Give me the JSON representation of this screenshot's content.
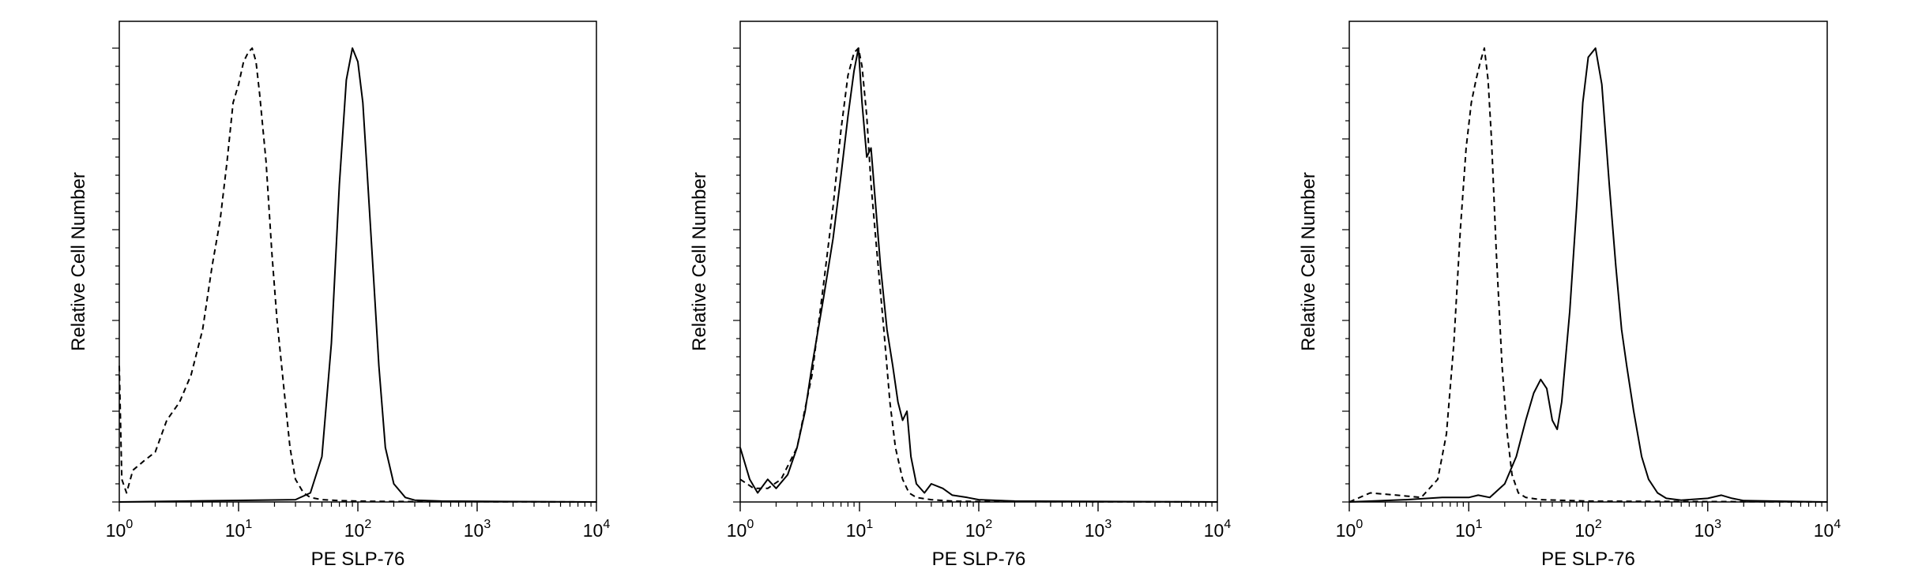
{
  "colors": {
    "background": "#ffffff",
    "ink": "#000000"
  },
  "chart_data": [
    {
      "type": "line",
      "xlabel": "PE SLP-76",
      "ylabel": "Relative Cell Number",
      "xscale": "log",
      "xlim": [
        1,
        10000
      ],
      "ylim": [
        0,
        1.0
      ],
      "grid": false,
      "x_ticks": [
        {
          "value": 1,
          "base": "10",
          "exp": "0"
        },
        {
          "value": 10,
          "base": "10",
          "exp": "1"
        },
        {
          "value": 100,
          "base": "10",
          "exp": "2"
        },
        {
          "value": 1000,
          "base": "10",
          "exp": "3"
        },
        {
          "value": 10000,
          "base": "10",
          "exp": "4"
        }
      ],
      "series": [
        {
          "style": "dashed",
          "x": [
            1,
            1.05,
            1.15,
            1.3,
            1.6,
            2.0,
            2.5,
            3.2,
            4.0,
            5.0,
            6.0,
            7.0,
            8.0,
            9.0,
            10.0,
            11.0,
            12.0,
            13.0,
            14.0,
            15.0,
            17.0,
            19.0,
            21.0,
            24.0,
            27.0,
            30.0,
            35.0,
            40.0,
            50.0,
            70.0,
            100.0,
            200.0,
            10000.0
          ],
          "y": [
            0.3,
            0.05,
            0.02,
            0.07,
            0.09,
            0.11,
            0.18,
            0.22,
            0.28,
            0.38,
            0.52,
            0.62,
            0.75,
            0.88,
            0.92,
            0.97,
            0.99,
            1.0,
            0.97,
            0.9,
            0.75,
            0.55,
            0.4,
            0.25,
            0.12,
            0.05,
            0.02,
            0.01,
            0.005,
            0.003,
            0.002,
            0.001,
            0.0
          ]
        },
        {
          "style": "solid",
          "x": [
            1,
            30.0,
            40.0,
            50.0,
            60.0,
            70.0,
            80.0,
            90.0,
            100.0,
            110.0,
            120.0,
            135.0,
            150.0,
            170.0,
            200.0,
            250.0,
            300.0,
            500.0,
            10000.0
          ],
          "y": [
            0.0,
            0.005,
            0.02,
            0.1,
            0.35,
            0.7,
            0.93,
            1.0,
            0.97,
            0.88,
            0.72,
            0.5,
            0.3,
            0.12,
            0.04,
            0.01,
            0.004,
            0.002,
            0.0
          ]
        }
      ]
    },
    {
      "type": "line",
      "xlabel": "PE SLP-76",
      "ylabel": "Relative Cell Number",
      "xscale": "log",
      "xlim": [
        1,
        10000
      ],
      "ylim": [
        0,
        1.0
      ],
      "grid": false,
      "x_ticks": [
        {
          "value": 1,
          "base": "10",
          "exp": "0"
        },
        {
          "value": 10,
          "base": "10",
          "exp": "1"
        },
        {
          "value": 100,
          "base": "10",
          "exp": "2"
        },
        {
          "value": 1000,
          "base": "10",
          "exp": "3"
        },
        {
          "value": 10000,
          "base": "10",
          "exp": "4"
        }
      ],
      "series": [
        {
          "style": "dashed",
          "x": [
            1,
            1.3,
            1.7,
            2.2,
            3.0,
            4.0,
            5.0,
            6.0,
            7.0,
            8.0,
            9.0,
            9.8,
            10.5,
            11.5,
            12.5,
            14.0,
            16.0,
            18.0,
            20.0,
            23.0,
            26.0,
            30.0,
            40.0,
            60.0,
            100.0,
            10000.0
          ],
          "y": [
            0.05,
            0.03,
            0.03,
            0.05,
            0.12,
            0.28,
            0.48,
            0.65,
            0.82,
            0.94,
            0.99,
            1.0,
            0.96,
            0.85,
            0.7,
            0.55,
            0.38,
            0.22,
            0.12,
            0.05,
            0.02,
            0.01,
            0.005,
            0.002,
            0.001,
            0.0
          ]
        },
        {
          "style": "solid",
          "x": [
            1,
            1.2,
            1.4,
            1.7,
            2.0,
            2.5,
            3.0,
            3.5,
            4.0,
            5.0,
            6.0,
            7.0,
            8.0,
            9.0,
            9.8,
            10.5,
            11.5,
            12.5,
            13.5,
            15.0,
            17.0,
            19.0,
            21.0,
            23.0,
            25.0,
            27.0,
            30.0,
            35.0,
            40.0,
            50.0,
            60.0,
            80.0,
            100.0,
            200.0,
            10000.0
          ],
          "y": [
            0.12,
            0.05,
            0.02,
            0.05,
            0.03,
            0.06,
            0.12,
            0.2,
            0.3,
            0.45,
            0.58,
            0.72,
            0.85,
            0.95,
            1.0,
            0.88,
            0.76,
            0.78,
            0.67,
            0.52,
            0.38,
            0.3,
            0.22,
            0.18,
            0.2,
            0.1,
            0.04,
            0.02,
            0.04,
            0.03,
            0.015,
            0.01,
            0.005,
            0.002,
            0.0
          ]
        }
      ]
    },
    {
      "type": "line",
      "xlabel": "PE SLP-76",
      "ylabel": "Relative Cell Number",
      "xscale": "log",
      "xlim": [
        1,
        10000
      ],
      "ylim": [
        0,
        1.0
      ],
      "grid": false,
      "x_ticks": [
        {
          "value": 1,
          "base": "10",
          "exp": "0"
        },
        {
          "value": 10,
          "base": "10",
          "exp": "1"
        },
        {
          "value": 100,
          "base": "10",
          "exp": "2"
        },
        {
          "value": 1000,
          "base": "10",
          "exp": "3"
        },
        {
          "value": 10000,
          "base": "10",
          "exp": "4"
        }
      ],
      "series": [
        {
          "style": "dashed",
          "x": [
            1,
            1.5,
            2.5,
            4.0,
            5.5,
            6.5,
            7.5,
            8.5,
            9.5,
            10.5,
            11.5,
            12.5,
            13.5,
            14.5,
            15.5,
            17.0,
            19.0,
            21.0,
            23.0,
            26.0,
            30.0,
            40.0,
            100.0,
            10000.0
          ],
          "y": [
            0.0,
            0.02,
            0.015,
            0.01,
            0.05,
            0.15,
            0.35,
            0.6,
            0.78,
            0.88,
            0.93,
            0.97,
            1.0,
            0.93,
            0.8,
            0.55,
            0.3,
            0.15,
            0.06,
            0.02,
            0.01,
            0.005,
            0.002,
            0.0
          ]
        },
        {
          "style": "solid",
          "x": [
            1,
            3.0,
            6.0,
            8.0,
            10.0,
            12.0,
            15.0,
            20.0,
            25.0,
            30.0,
            35.0,
            40.0,
            45.0,
            50.0,
            55.0,
            60.0,
            70.0,
            80.0,
            90.0,
            100.0,
            115.0,
            130.0,
            150.0,
            170.0,
            190.0,
            210.0,
            240.0,
            280.0,
            320.0,
            380.0,
            450.0,
            600.0,
            1000.0,
            1300.0,
            1600.0,
            2000.0,
            10000.0
          ],
          "y": [
            0.0,
            0.005,
            0.01,
            0.01,
            0.01,
            0.015,
            0.01,
            0.04,
            0.1,
            0.18,
            0.24,
            0.27,
            0.25,
            0.18,
            0.16,
            0.22,
            0.42,
            0.65,
            0.88,
            0.98,
            1.0,
            0.92,
            0.7,
            0.52,
            0.38,
            0.3,
            0.2,
            0.1,
            0.05,
            0.02,
            0.008,
            0.004,
            0.008,
            0.015,
            0.008,
            0.003,
            0.0
          ]
        }
      ]
    }
  ]
}
